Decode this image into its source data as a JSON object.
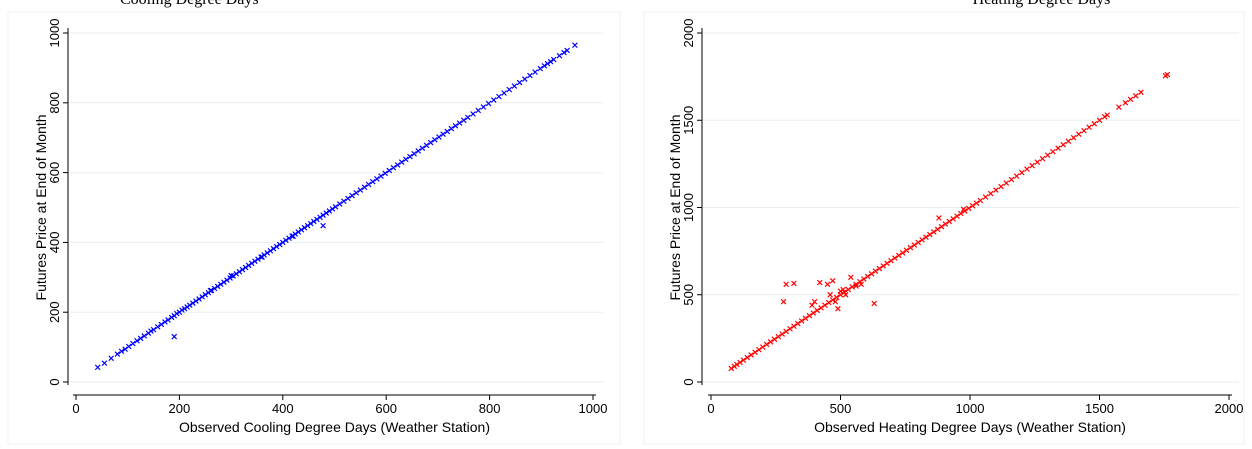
{
  "caption": {
    "left": "Cooling Degree Days",
    "right": "Heating Degree Days"
  },
  "colors": {
    "left_series": "#0000ff",
    "right_series": "#ff0000",
    "grid": "#e8eef2"
  },
  "chart_data": [
    {
      "type": "scatter",
      "xlabel": "Observed Cooling Degree Days (Weather Station)",
      "ylabel": "Futures Price at End of Month",
      "xlim": [
        0,
        1000
      ],
      "ylim": [
        0,
        1000
      ],
      "xticks": [
        0,
        200,
        400,
        600,
        800,
        1000
      ],
      "yticks": [
        0,
        200,
        400,
        600,
        800,
        1000
      ],
      "grid": true,
      "marker": "x",
      "series": [
        {
          "color": "#0000ff",
          "points": [
            [
              42,
              42
            ],
            [
              55,
              54
            ],
            [
              68,
              68
            ],
            [
              80,
              80
            ],
            [
              88,
              88
            ],
            [
              95,
              94
            ],
            [
              102,
              102
            ],
            [
              110,
              110
            ],
            [
              118,
              118
            ],
            [
              125,
              125
            ],
            [
              132,
              132
            ],
            [
              140,
              140
            ],
            [
              145,
              146
            ],
            [
              150,
              150
            ],
            [
              158,
              158
            ],
            [
              165,
              165
            ],
            [
              172,
              172
            ],
            [
              178,
              178
            ],
            [
              185,
              185
            ],
            [
              190,
              190
            ],
            [
              195,
              196
            ],
            [
              200,
              200
            ],
            [
              205,
              206
            ],
            [
              210,
              210
            ],
            [
              215,
              215
            ],
            [
              220,
              220
            ],
            [
              226,
              226
            ],
            [
              232,
              232
            ],
            [
              238,
              238
            ],
            [
              244,
              244
            ],
            [
              250,
              250
            ],
            [
              256,
              256
            ],
            [
              262,
              262
            ],
            [
              268,
              268
            ],
            [
              274,
              274
            ],
            [
              280,
              280
            ],
            [
              286,
              286
            ],
            [
              292,
              292
            ],
            [
              298,
              298
            ],
            [
              304,
              304
            ],
            [
              310,
              310
            ],
            [
              316,
              316
            ],
            [
              322,
              322
            ],
            [
              328,
              328
            ],
            [
              334,
              334
            ],
            [
              340,
              340
            ],
            [
              346,
              346
            ],
            [
              352,
              352
            ],
            [
              358,
              358
            ],
            [
              364,
              364
            ],
            [
              370,
              370
            ],
            [
              376,
              376
            ],
            [
              382,
              382
            ],
            [
              388,
              388
            ],
            [
              394,
              394
            ],
            [
              400,
              400
            ],
            [
              406,
              406
            ],
            [
              412,
              412
            ],
            [
              418,
              418
            ],
            [
              424,
              424
            ],
            [
              430,
              430
            ],
            [
              436,
              436
            ],
            [
              442,
              442
            ],
            [
              448,
              448
            ],
            [
              454,
              454
            ],
            [
              460,
              460
            ],
            [
              466,
              466
            ],
            [
              472,
              472
            ],
            [
              478,
              478
            ],
            [
              484,
              484
            ],
            [
              490,
              490
            ],
            [
              496,
              496
            ],
            [
              502,
              502
            ],
            [
              510,
              510
            ],
            [
              518,
              518
            ],
            [
              526,
              526
            ],
            [
              534,
              534
            ],
            [
              542,
              542
            ],
            [
              550,
              550
            ],
            [
              558,
              558
            ],
            [
              566,
              566
            ],
            [
              574,
              574
            ],
            [
              582,
              582
            ],
            [
              590,
              590
            ],
            [
              598,
              598
            ],
            [
              606,
              606
            ],
            [
              614,
              614
            ],
            [
              622,
              622
            ],
            [
              630,
              630
            ],
            [
              638,
              638
            ],
            [
              646,
              646
            ],
            [
              654,
              654
            ],
            [
              662,
              662
            ],
            [
              670,
              670
            ],
            [
              678,
              678
            ],
            [
              686,
              686
            ],
            [
              694,
              694
            ],
            [
              702,
              702
            ],
            [
              710,
              710
            ],
            [
              718,
              718
            ],
            [
              726,
              726
            ],
            [
              734,
              734
            ],
            [
              742,
              742
            ],
            [
              750,
              750
            ],
            [
              758,
              758
            ],
            [
              768,
              768
            ],
            [
              778,
              778
            ],
            [
              788,
              788
            ],
            [
              798,
              798
            ],
            [
              808,
              808
            ],
            [
              818,
              818
            ],
            [
              828,
              828
            ],
            [
              838,
              838
            ],
            [
              848,
              848
            ],
            [
              858,
              858
            ],
            [
              868,
              868
            ],
            [
              878,
              878
            ],
            [
              888,
              888
            ],
            [
              898,
              898
            ],
            [
              906,
              906
            ],
            [
              912,
              912
            ],
            [
              918,
              918
            ],
            [
              924,
              924
            ],
            [
              935,
              935
            ],
            [
              944,
              944
            ],
            [
              950,
              950
            ],
            [
              965,
              965
            ],
            [
              190,
              130
            ],
            [
              478,
              448
            ],
            [
              300,
              305
            ],
            [
              420,
              418
            ],
            [
              260,
              262
            ],
            [
              360,
              358
            ]
          ]
        }
      ]
    },
    {
      "type": "scatter",
      "xlabel": "Observed Heating Degree Days (Weather Station)",
      "ylabel": "Futures Price at End of Month",
      "xlim": [
        0,
        2000
      ],
      "ylim": [
        0,
        2000
      ],
      "xticks": [
        0,
        500,
        1000,
        1500,
        2000
      ],
      "yticks": [
        0,
        500,
        1000,
        1500,
        2000
      ],
      "grid": true,
      "marker": "x",
      "series": [
        {
          "color": "#ff0000",
          "points": [
            [
              78,
              78
            ],
            [
              90,
              90
            ],
            [
              100,
              100
            ],
            [
              112,
              112
            ],
            [
              125,
              125
            ],
            [
              140,
              140
            ],
            [
              155,
              155
            ],
            [
              170,
              170
            ],
            [
              185,
              185
            ],
            [
              200,
              200
            ],
            [
              215,
              215
            ],
            [
              230,
              230
            ],
            [
              245,
              245
            ],
            [
              260,
              260
            ],
            [
              275,
              275
            ],
            [
              290,
              290
            ],
            [
              305,
              305
            ],
            [
              320,
              320
            ],
            [
              335,
              335
            ],
            [
              350,
              350
            ],
            [
              365,
              365
            ],
            [
              380,
              380
            ],
            [
              395,
              395
            ],
            [
              410,
              410
            ],
            [
              425,
              425
            ],
            [
              440,
              440
            ],
            [
              455,
              455
            ],
            [
              470,
              470
            ],
            [
              485,
              485
            ],
            [
              500,
              500
            ],
            [
              515,
              515
            ],
            [
              530,
              530
            ],
            [
              545,
              545
            ],
            [
              560,
              560
            ],
            [
              575,
              575
            ],
            [
              590,
              590
            ],
            [
              605,
              605
            ],
            [
              620,
              620
            ],
            [
              635,
              635
            ],
            [
              650,
              650
            ],
            [
              665,
              665
            ],
            [
              680,
              680
            ],
            [
              695,
              695
            ],
            [
              710,
              710
            ],
            [
              725,
              725
            ],
            [
              740,
              740
            ],
            [
              755,
              755
            ],
            [
              770,
              770
            ],
            [
              785,
              785
            ],
            [
              800,
              800
            ],
            [
              815,
              815
            ],
            [
              830,
              830
            ],
            [
              845,
              845
            ],
            [
              860,
              860
            ],
            [
              875,
              875
            ],
            [
              890,
              890
            ],
            [
              905,
              905
            ],
            [
              920,
              920
            ],
            [
              935,
              935
            ],
            [
              950,
              950
            ],
            [
              965,
              965
            ],
            [
              980,
              980
            ],
            [
              995,
              995
            ],
            [
              1010,
              1010
            ],
            [
              1025,
              1025
            ],
            [
              1040,
              1040
            ],
            [
              1060,
              1060
            ],
            [
              1080,
              1080
            ],
            [
              1100,
              1100
            ],
            [
              1120,
              1120
            ],
            [
              1140,
              1140
            ],
            [
              1160,
              1160
            ],
            [
              1180,
              1180
            ],
            [
              1200,
              1200
            ],
            [
              1220,
              1220
            ],
            [
              1240,
              1240
            ],
            [
              1260,
              1260
            ],
            [
              1280,
              1280
            ],
            [
              1300,
              1300
            ],
            [
              1320,
              1320
            ],
            [
              1340,
              1340
            ],
            [
              1360,
              1360
            ],
            [
              1380,
              1380
            ],
            [
              1400,
              1400
            ],
            [
              1420,
              1420
            ],
            [
              1440,
              1440
            ],
            [
              1460,
              1460
            ],
            [
              1480,
              1480
            ],
            [
              1500,
              1500
            ],
            [
              1520,
              1520
            ],
            [
              1530,
              1530
            ],
            [
              1575,
              1575
            ],
            [
              1600,
              1600
            ],
            [
              1620,
              1620
            ],
            [
              1640,
              1640
            ],
            [
              1660,
              1660
            ],
            [
              1755,
              1755
            ],
            [
              1762,
              1762
            ],
            [
              280,
              460
            ],
            [
              290,
              560
            ],
            [
              320,
              565
            ],
            [
              390,
              440
            ],
            [
              400,
              460
            ],
            [
              420,
              570
            ],
            [
              450,
              560
            ],
            [
              460,
              500
            ],
            [
              470,
              580
            ],
            [
              480,
              460
            ],
            [
              490,
              420
            ],
            [
              500,
              520
            ],
            [
              510,
              530
            ],
            [
              520,
              500
            ],
            [
              540,
              600
            ],
            [
              560,
              550
            ],
            [
              580,
              560
            ],
            [
              630,
              450
            ],
            [
              880,
              940
            ],
            [
              975,
              990
            ]
          ]
        }
      ]
    }
  ]
}
